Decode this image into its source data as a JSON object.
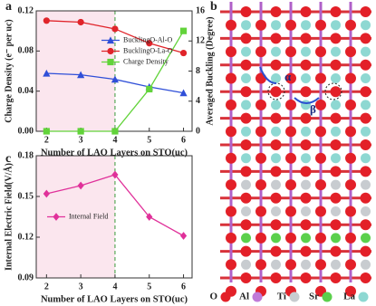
{
  "chart_data": [
    {
      "type": "line",
      "label": "a",
      "x": [
        2,
        3,
        4,
        5,
        6
      ],
      "xlim": [
        1.7,
        6.25
      ],
      "xticks": [
        2,
        3,
        4,
        5,
        6
      ],
      "xlabel": "Number of LAO Layers on STO(uc)",
      "ylabel": "Charge Density (e⁻ per uc)",
      "y2label": "Averaged Buckling (Degree)",
      "ylim": [
        0,
        0.12
      ],
      "yticks": [
        {
          "value": 0,
          "label": "0.00"
        },
        0.04,
        0.08,
        0.12
      ],
      "y2lim": [
        0,
        16
      ],
      "y2ticks": [
        0,
        4,
        8,
        12,
        16
      ],
      "highlight_xrange": [
        1.7,
        4
      ],
      "divider_x": 4,
      "legend_position": "center right",
      "series": [
        {
          "name": "BucklingO-Al-O",
          "color": "#2f4fd8",
          "marker": "triangle",
          "axis": "y2",
          "values": [
            7.7,
            7.5,
            6.9,
            5.9,
            5.1
          ]
        },
        {
          "name": "BucklingO-La-O",
          "color": "#e0242a",
          "marker": "circle",
          "axis": "y2",
          "values": [
            14.7,
            14.5,
            13.6,
            11.7,
            10.4
          ]
        },
        {
          "name": "Charge Density",
          "color": "#62d33a",
          "marker": "square",
          "values": [
            0,
            0,
            0,
            0.042,
            0.1
          ]
        }
      ]
    },
    {
      "type": "line",
      "label": "c",
      "x": [
        2,
        3,
        4,
        5,
        6
      ],
      "xlim": [
        1.7,
        6.25
      ],
      "xticks": [
        2,
        3,
        4,
        5,
        6
      ],
      "xlabel": "Number of LAO Layers on STO(uc)",
      "ylabel": "Internal Electric Field(V/Å)",
      "ylim": [
        0.09,
        0.18
      ],
      "yticks": [
        0.09,
        0.12,
        0.15,
        0.18
      ],
      "highlight_xrange": [
        1.7,
        4
      ],
      "divider_x": 4,
      "legend_position": "center left",
      "series": [
        {
          "name": "Internal Field",
          "color": "#e0319a",
          "marker": "diamond",
          "values": [
            0.152,
            0.158,
            0.166,
            0.135,
            0.121
          ]
        }
      ]
    }
  ],
  "diagram": {
    "label": "b",
    "angles": [
      "α",
      "β"
    ],
    "legend": [
      "O",
      "Al",
      "Ti",
      "Sr",
      "La"
    ]
  }
}
